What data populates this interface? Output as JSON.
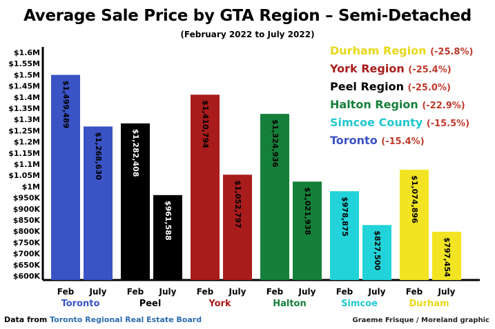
{
  "chart_data": {
    "type": "bar",
    "title": "Average Sale Price by GTA Region – Semi-Detached",
    "subtitle": "(February 2022 to July 2022)",
    "ylim": [
      600000,
      1600000
    ],
    "y_ticks": [
      {
        "value": 1600000,
        "label": "$1.6M"
      },
      {
        "value": 1550000,
        "label": "$1.55M"
      },
      {
        "value": 1500000,
        "label": "$1.5M"
      },
      {
        "value": 1450000,
        "label": "$1.45M"
      },
      {
        "value": 1400000,
        "label": "$1.4M"
      },
      {
        "value": 1350000,
        "label": "$1.35M"
      },
      {
        "value": 1300000,
        "label": "$1.3M"
      },
      {
        "value": 1250000,
        "label": "$1.25M"
      },
      {
        "value": 1200000,
        "label": "$1.2M"
      },
      {
        "value": 1150000,
        "label": "$1.15M"
      },
      {
        "value": 1100000,
        "label": "$1.1M"
      },
      {
        "value": 1050000,
        "label": "$1.05M"
      },
      {
        "value": 1000000,
        "label": "$1M"
      },
      {
        "value": 950000,
        "label": "$950K"
      },
      {
        "value": 900000,
        "label": "$900K"
      },
      {
        "value": 850000,
        "label": "$850K"
      },
      {
        "value": 800000,
        "label": "$800K"
      },
      {
        "value": 750000,
        "label": "$750K"
      },
      {
        "value": 700000,
        "label": "$700K"
      },
      {
        "value": 650000,
        "label": "$650K"
      },
      {
        "value": 600000,
        "label": "$600K"
      }
    ],
    "regions": [
      {
        "name": "Toronto",
        "color": "#3a53c5",
        "label_color": "#3a53c5",
        "bars": [
          {
            "month": "Feb",
            "value": 1499489,
            "label": "$1,499,489"
          },
          {
            "month": "July",
            "value": 1268630,
            "label": "$1,268,630"
          }
        ]
      },
      {
        "name": "Peel",
        "color": "#000000",
        "label_color": "#000000",
        "bars": [
          {
            "month": "Feb",
            "value": 1282408,
            "label": "$1,282,408"
          },
          {
            "month": "July",
            "value": 961588,
            "label": "$961,588"
          }
        ]
      },
      {
        "name": "York",
        "color": "#a81c1c",
        "label_color": "#a81c1c",
        "bars": [
          {
            "month": "Feb",
            "value": 1410794,
            "label": "$1,410,794"
          },
          {
            "month": "July",
            "value": 1052797,
            "label": "$1,052,797"
          }
        ]
      },
      {
        "name": "Halton",
        "color": "#15803a",
        "label_color": "#15803a",
        "bars": [
          {
            "month": "Feb",
            "value": 1324936,
            "label": "$1,324,936"
          },
          {
            "month": "July",
            "value": 1021938,
            "label": "$1,021,938"
          }
        ]
      },
      {
        "name": "Simcoe",
        "color": "#22d3d9",
        "label_color": "#22c7cf",
        "bars": [
          {
            "month": "Feb",
            "value": 978875,
            "label": "$978,875"
          },
          {
            "month": "July",
            "value": 827500,
            "label": "$827,500"
          }
        ]
      },
      {
        "name": "Durham",
        "color": "#f2e422",
        "label_color": "#e8d81a",
        "bars": [
          {
            "month": "Feb",
            "value": 1074896,
            "label": "$1,074,896"
          },
          {
            "month": "July",
            "value": 797454,
            "label": "$797,454"
          }
        ]
      }
    ],
    "legend": {
      "placement": "top-right",
      "items": [
        {
          "name": "Durham Region",
          "change": "(-25.8%)",
          "color": "#e8d81a"
        },
        {
          "name": "York Region",
          "change": "(-25.4%)",
          "color": "#a81c1c"
        },
        {
          "name": "Peel Region",
          "change": "(-25.0%)",
          "color": "#000000"
        },
        {
          "name": "Halton Region",
          "change": "(-22.9%)",
          "color": "#15803a"
        },
        {
          "name": "Simcoe County",
          "change": "(-15.5%)",
          "color": "#22c7cf"
        },
        {
          "name": "Toronto",
          "change": "(-15.4%)",
          "color": "#3a53c5"
        }
      ]
    },
    "grid": false
  },
  "footer": {
    "source_prefix": "Data from ",
    "source_org": "Toronto Regional Real Estate Board",
    "credit": "Graeme Frisque / Moreland graphic"
  }
}
